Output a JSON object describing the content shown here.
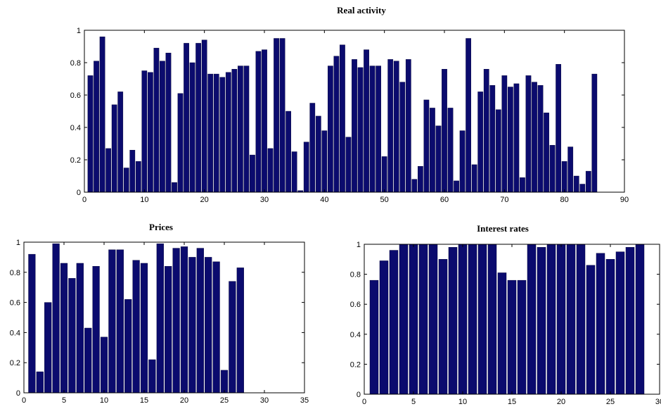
{
  "chart_data": [
    {
      "type": "bar",
      "title": "Real activity",
      "xlim": [
        0,
        90
      ],
      "ylim": [
        0,
        1
      ],
      "xticks": [
        0,
        10,
        20,
        30,
        40,
        50,
        60,
        70,
        80,
        90
      ],
      "yticks": [
        0,
        0.2,
        0.4,
        0.6,
        0.8,
        1
      ],
      "x": [
        1,
        2,
        3,
        4,
        5,
        6,
        7,
        8,
        9,
        10,
        11,
        12,
        13,
        14,
        15,
        16,
        17,
        18,
        19,
        20,
        21,
        22,
        23,
        24,
        25,
        26,
        27,
        28,
        29,
        30,
        31,
        32,
        33,
        34,
        35,
        36,
        37,
        38,
        39,
        40,
        41,
        42,
        43,
        44,
        45,
        46,
        47,
        48,
        49,
        50,
        51,
        52,
        53,
        54,
        55,
        56,
        57,
        58,
        59,
        60,
        61,
        62,
        63,
        64,
        65,
        66,
        67,
        68,
        69,
        70,
        71,
        72,
        73,
        74,
        75,
        76,
        77,
        78,
        79,
        80,
        81,
        82,
        83,
        84,
        85
      ],
      "values": [
        0.72,
        0.81,
        0.96,
        0.27,
        0.54,
        0.62,
        0.15,
        0.26,
        0.19,
        0.75,
        0.74,
        0.89,
        0.81,
        0.86,
        0.06,
        0.61,
        0.92,
        0.8,
        0.92,
        0.94,
        0.73,
        0.73,
        0.71,
        0.74,
        0.76,
        0.78,
        0.78,
        0.23,
        0.87,
        0.88,
        0.27,
        0.95,
        0.95,
        0.5,
        0.25,
        0.01,
        0.31,
        0.55,
        0.47,
        0.38,
        0.78,
        0.84,
        0.91,
        0.34,
        0.82,
        0.77,
        0.88,
        0.78,
        0.78,
        0.22,
        0.82,
        0.81,
        0.68,
        0.82,
        0.08,
        0.16,
        0.57,
        0.52,
        0.41,
        0.76,
        0.52,
        0.07,
        0.38,
        0.95,
        0.17,
        0.62,
        0.76,
        0.66,
        0.51,
        0.72,
        0.65,
        0.67,
        0.09,
        0.72,
        0.68,
        0.66,
        0.49,
        0.29,
        0.79,
        0.19,
        0.28,
        0.1,
        0.05,
        0.13,
        0.73
      ]
    },
    {
      "type": "bar",
      "title": "Prices",
      "xlim": [
        0,
        35
      ],
      "ylim": [
        0,
        1
      ],
      "xticks": [
        0,
        5,
        10,
        15,
        20,
        25,
        30,
        35
      ],
      "yticks": [
        0,
        0.2,
        0.4,
        0.6,
        0.8,
        1
      ],
      "x": [
        1,
        2,
        3,
        4,
        5,
        6,
        7,
        8,
        9,
        10,
        11,
        12,
        13,
        14,
        15,
        16,
        17,
        18,
        19,
        20,
        21,
        22,
        23,
        24,
        25,
        26,
        27
      ],
      "values": [
        0.92,
        0.14,
        0.6,
        0.99,
        0.86,
        0.76,
        0.86,
        0.43,
        0.84,
        0.37,
        0.95,
        0.95,
        0.62,
        0.88,
        0.86,
        0.22,
        0.99,
        0.84,
        0.96,
        0.97,
        0.9,
        0.96,
        0.9,
        0.87,
        0.15,
        0.74,
        0.83
      ]
    },
    {
      "type": "bar",
      "title": "Interest rates",
      "xlim": [
        0,
        30
      ],
      "ylim": [
        0,
        1
      ],
      "xticks": [
        0,
        5,
        10,
        15,
        20,
        25,
        30
      ],
      "yticks": [
        0,
        0.2,
        0.4,
        0.6,
        0.8,
        1
      ],
      "x": [
        1,
        2,
        3,
        4,
        5,
        6,
        7,
        8,
        9,
        10,
        11,
        12,
        13,
        14,
        15,
        16,
        17,
        18,
        19,
        20,
        21,
        22,
        23,
        24,
        25,
        26,
        27,
        28
      ],
      "values": [
        0.76,
        0.89,
        0.96,
        1.0,
        1.0,
        1.0,
        1.0,
        0.9,
        0.98,
        1.0,
        1.0,
        1.0,
        1.0,
        0.81,
        0.76,
        0.76,
        1.0,
        0.98,
        1.0,
        1.0,
        1.0,
        1.0,
        0.86,
        0.94,
        0.9,
        0.95,
        0.98,
        1.0
      ]
    }
  ]
}
